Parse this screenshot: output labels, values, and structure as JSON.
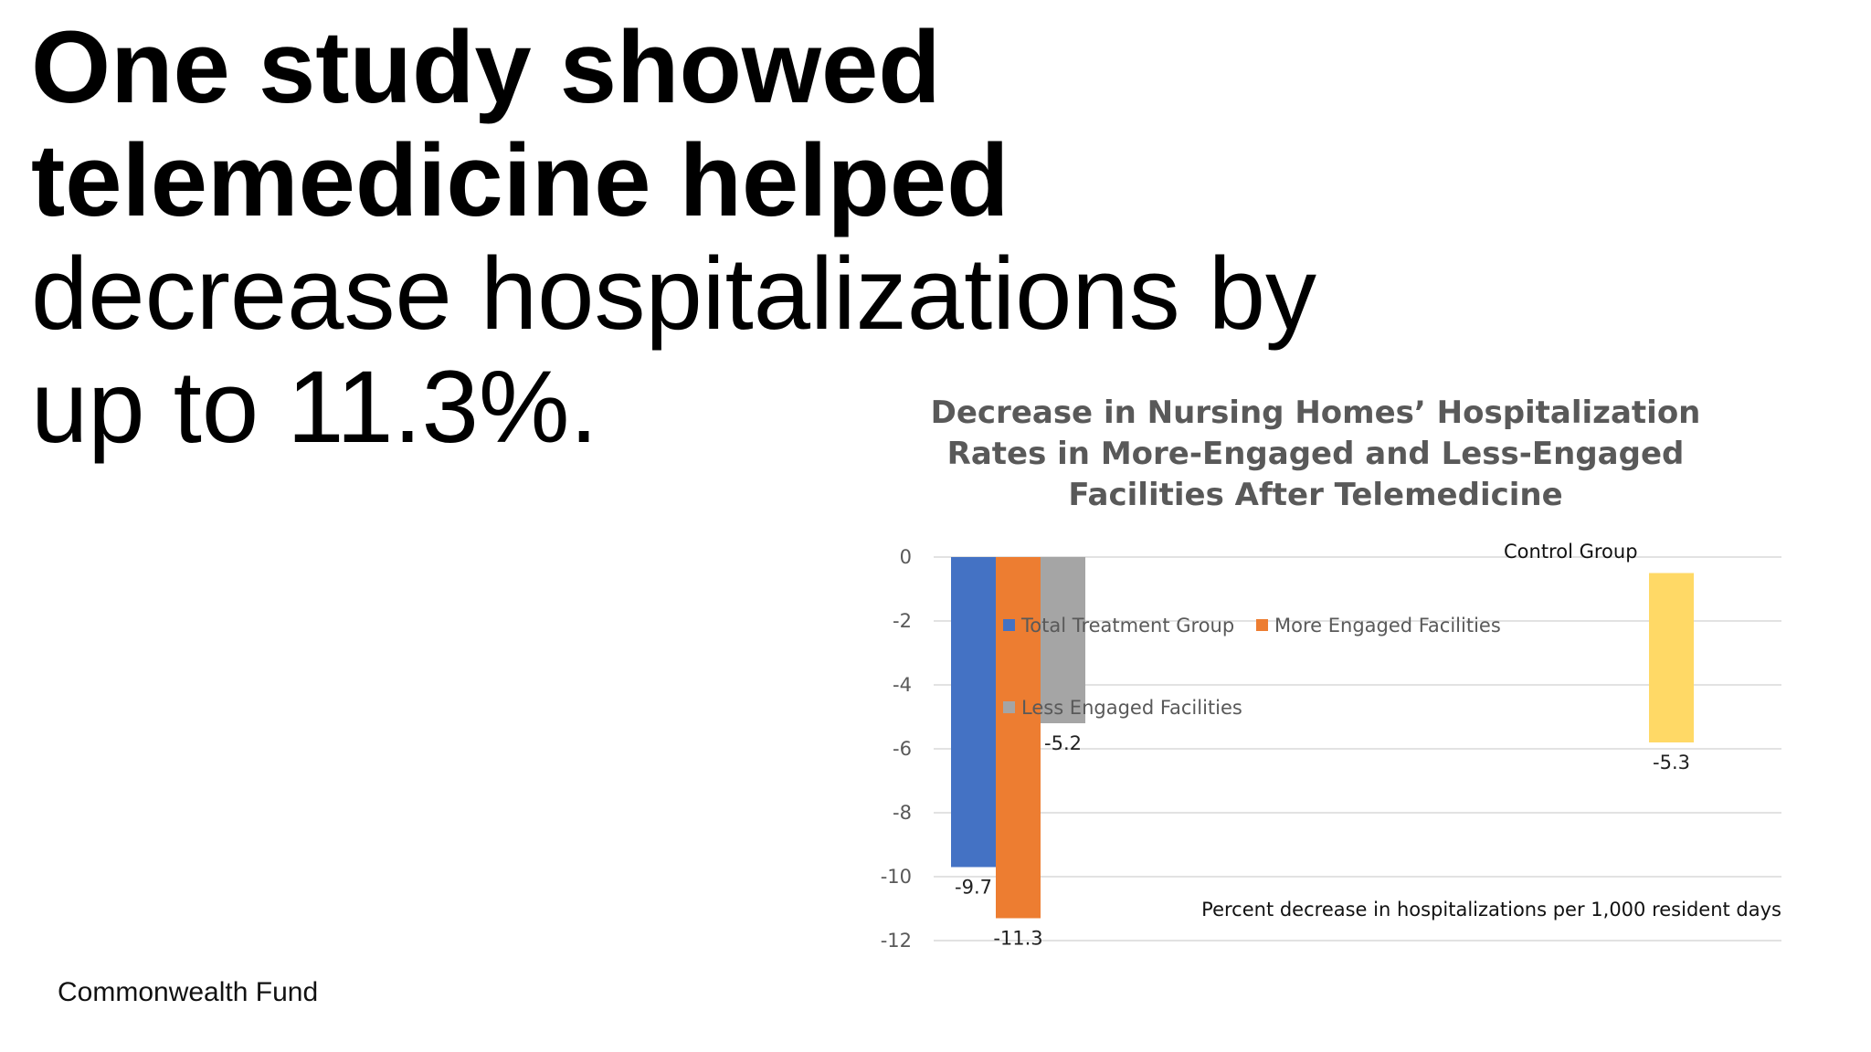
{
  "headline": {
    "line1": "One study showed",
    "line2": "telemedicine helped",
    "line3": "decrease hospitalizations by",
    "line4": "up to 11.3%."
  },
  "source": "Commonwealth Fund",
  "chart_data": {
    "type": "bar",
    "title_lines": [
      "Decrease in Nursing Homes’ Hospitalization",
      "Rates in More-Engaged and Less-Engaged",
      "Facilities After Telemedicine"
    ],
    "ylim": [
      -12,
      0
    ],
    "yticks": [
      0,
      -2,
      -4,
      -6,
      -8,
      -10,
      -12
    ],
    "grid": true,
    "series": [
      {
        "name": "Total Treatment Group",
        "value": -9.7,
        "label": "-9.7",
        "color": "#4472C4",
        "group": "treatment"
      },
      {
        "name": "More Engaged Facilities",
        "value": -11.3,
        "label": "-11.3",
        "color": "#ED7D31",
        "group": "treatment"
      },
      {
        "name": "Less Engaged Facilities",
        "value": -5.2,
        "label": "-5.2",
        "color": "#A5A5A5",
        "group": "treatment"
      },
      {
        "name": "Control Group",
        "value": -5.3,
        "label": "-5.3",
        "color": "#FFD966",
        "group": "control"
      }
    ],
    "legend": [
      {
        "name": "Total Treatment Group",
        "color": "#4472C4"
      },
      {
        "name": "More Engaged Facilities",
        "color": "#ED7D31"
      },
      {
        "name": "Less Engaged Facilities",
        "color": "#A5A5A5"
      }
    ],
    "control_label": "Control Group",
    "xlabel": "Percent decrease in hospitalizations per 1,000 resident days"
  }
}
